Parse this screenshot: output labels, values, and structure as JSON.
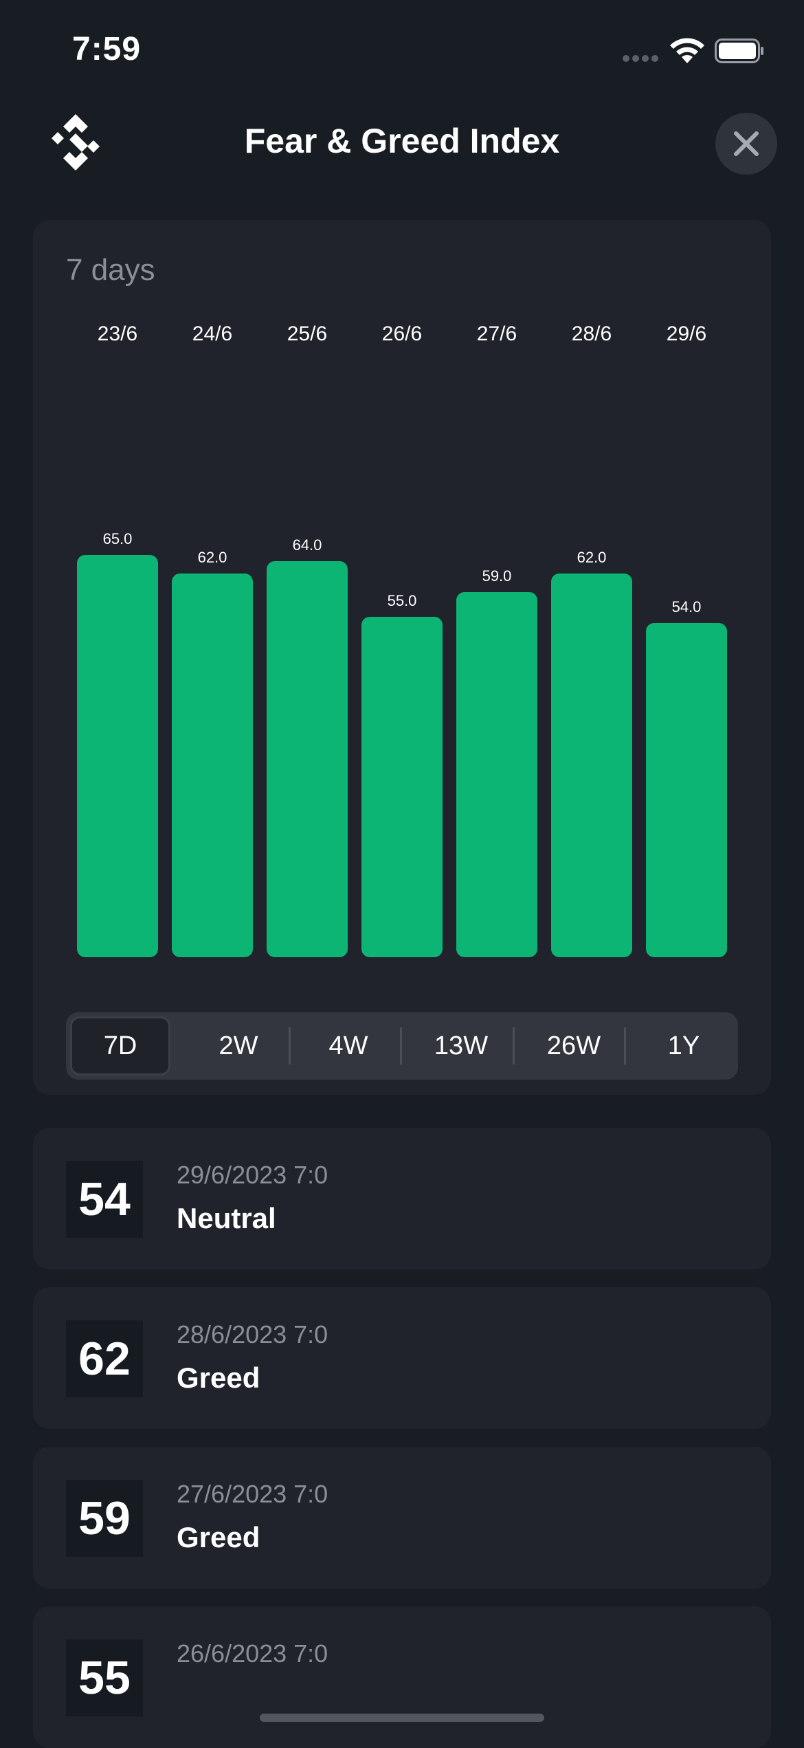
{
  "status_bar": {
    "time": "7:59"
  },
  "header": {
    "title": "Fear & Greed Index"
  },
  "chart": {
    "range_label": "7 days"
  },
  "chart_data": {
    "type": "bar",
    "categories": [
      "23/6",
      "24/6",
      "25/6",
      "26/6",
      "27/6",
      "28/6",
      "29/6"
    ],
    "values": [
      65.0,
      62.0,
      64.0,
      55.0,
      59.0,
      62.0,
      54.0
    ],
    "value_labels": [
      "65.0",
      "62.0",
      "64.0",
      "55.0",
      "59.0",
      "62.0",
      "54.0"
    ],
    "ylim": [
      0,
      100
    ],
    "grid": false,
    "bar_color": "#0cb573"
  },
  "range_tabs": [
    {
      "label": "7D",
      "selected": true
    },
    {
      "label": "2W",
      "selected": false
    },
    {
      "label": "4W",
      "selected": false
    },
    {
      "label": "13W",
      "selected": false
    },
    {
      "label": "26W",
      "selected": false
    },
    {
      "label": "1Y",
      "selected": false
    }
  ],
  "history": [
    {
      "score": "54",
      "date": "29/6/2023 7:0",
      "label": "Neutral"
    },
    {
      "score": "62",
      "date": "28/6/2023 7:0",
      "label": "Greed"
    },
    {
      "score": "59",
      "date": "27/6/2023 7:0",
      "label": "Greed"
    },
    {
      "score": "55",
      "date": "26/6/2023 7:0",
      "label": ""
    }
  ],
  "colors": {
    "background": "#181c23",
    "card": "#20232b",
    "accent_green": "#0cb573",
    "muted_text": "#8a8e96"
  }
}
